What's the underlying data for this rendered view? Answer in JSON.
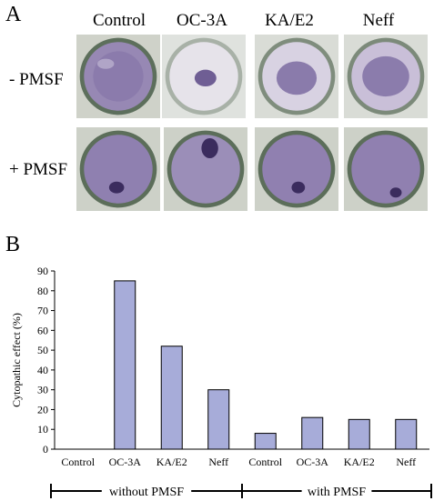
{
  "panel_a": {
    "label": "A",
    "columns": [
      "Control",
      "OC-3A",
      "KA/E2",
      "Neff"
    ],
    "rows": [
      "- PMSF",
      "+ PMSF"
    ]
  },
  "panel_b": {
    "label": "B"
  },
  "chart_data": {
    "type": "bar",
    "categories": [
      "Control",
      "OC-3A",
      "KA/E2",
      "Neff",
      "Control",
      "OC-3A",
      "KA/E2",
      "Neff"
    ],
    "values": [
      0,
      85,
      52,
      30,
      8,
      16,
      15,
      15
    ],
    "ylabel": "Cytopathic effect (%)",
    "xlabel": "",
    "ylim": [
      0,
      90
    ],
    "yticks": [
      0,
      10,
      20,
      30,
      40,
      50,
      60,
      70,
      80,
      90
    ],
    "groups": [
      "without PMSF",
      "with PMSF"
    ],
    "bar_color": "#a7acd9",
    "grid": false
  }
}
